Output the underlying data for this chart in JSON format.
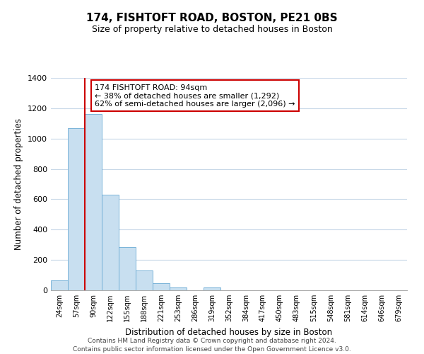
{
  "title": "174, FISHTOFT ROAD, BOSTON, PE21 0BS",
  "subtitle": "Size of property relative to detached houses in Boston",
  "xlabel": "Distribution of detached houses by size in Boston",
  "ylabel": "Number of detached properties",
  "categories": [
    "24sqm",
    "57sqm",
    "90sqm",
    "122sqm",
    "155sqm",
    "188sqm",
    "221sqm",
    "253sqm",
    "286sqm",
    "319sqm",
    "352sqm",
    "384sqm",
    "417sqm",
    "450sqm",
    "483sqm",
    "515sqm",
    "548sqm",
    "581sqm",
    "614sqm",
    "646sqm",
    "679sqm"
  ],
  "values": [
    65,
    1070,
    1160,
    630,
    285,
    130,
    48,
    18,
    0,
    18,
    0,
    0,
    0,
    0,
    0,
    0,
    0,
    0,
    0,
    0,
    0
  ],
  "bar_color": "#c8dff0",
  "bar_edge_color": "#6aaad4",
  "highlight_line_color": "#cc0000",
  "highlight_bar_index": 2,
  "ylim": [
    0,
    1400
  ],
  "yticks": [
    0,
    200,
    400,
    600,
    800,
    1000,
    1200,
    1400
  ],
  "annotation_text_line1": "174 FISHTOFT ROAD: 94sqm",
  "annotation_text_line2": "← 38% of detached houses are smaller (1,292)",
  "annotation_text_line3": "62% of semi-detached houses are larger (2,096) →",
  "annotation_box_color": "#ffffff",
  "annotation_box_edge": "#cc0000",
  "footer_line1": "Contains HM Land Registry data © Crown copyright and database right 2024.",
  "footer_line2": "Contains public sector information licensed under the Open Government Licence v3.0.",
  "background_color": "#ffffff",
  "grid_color": "#c8d8e8"
}
